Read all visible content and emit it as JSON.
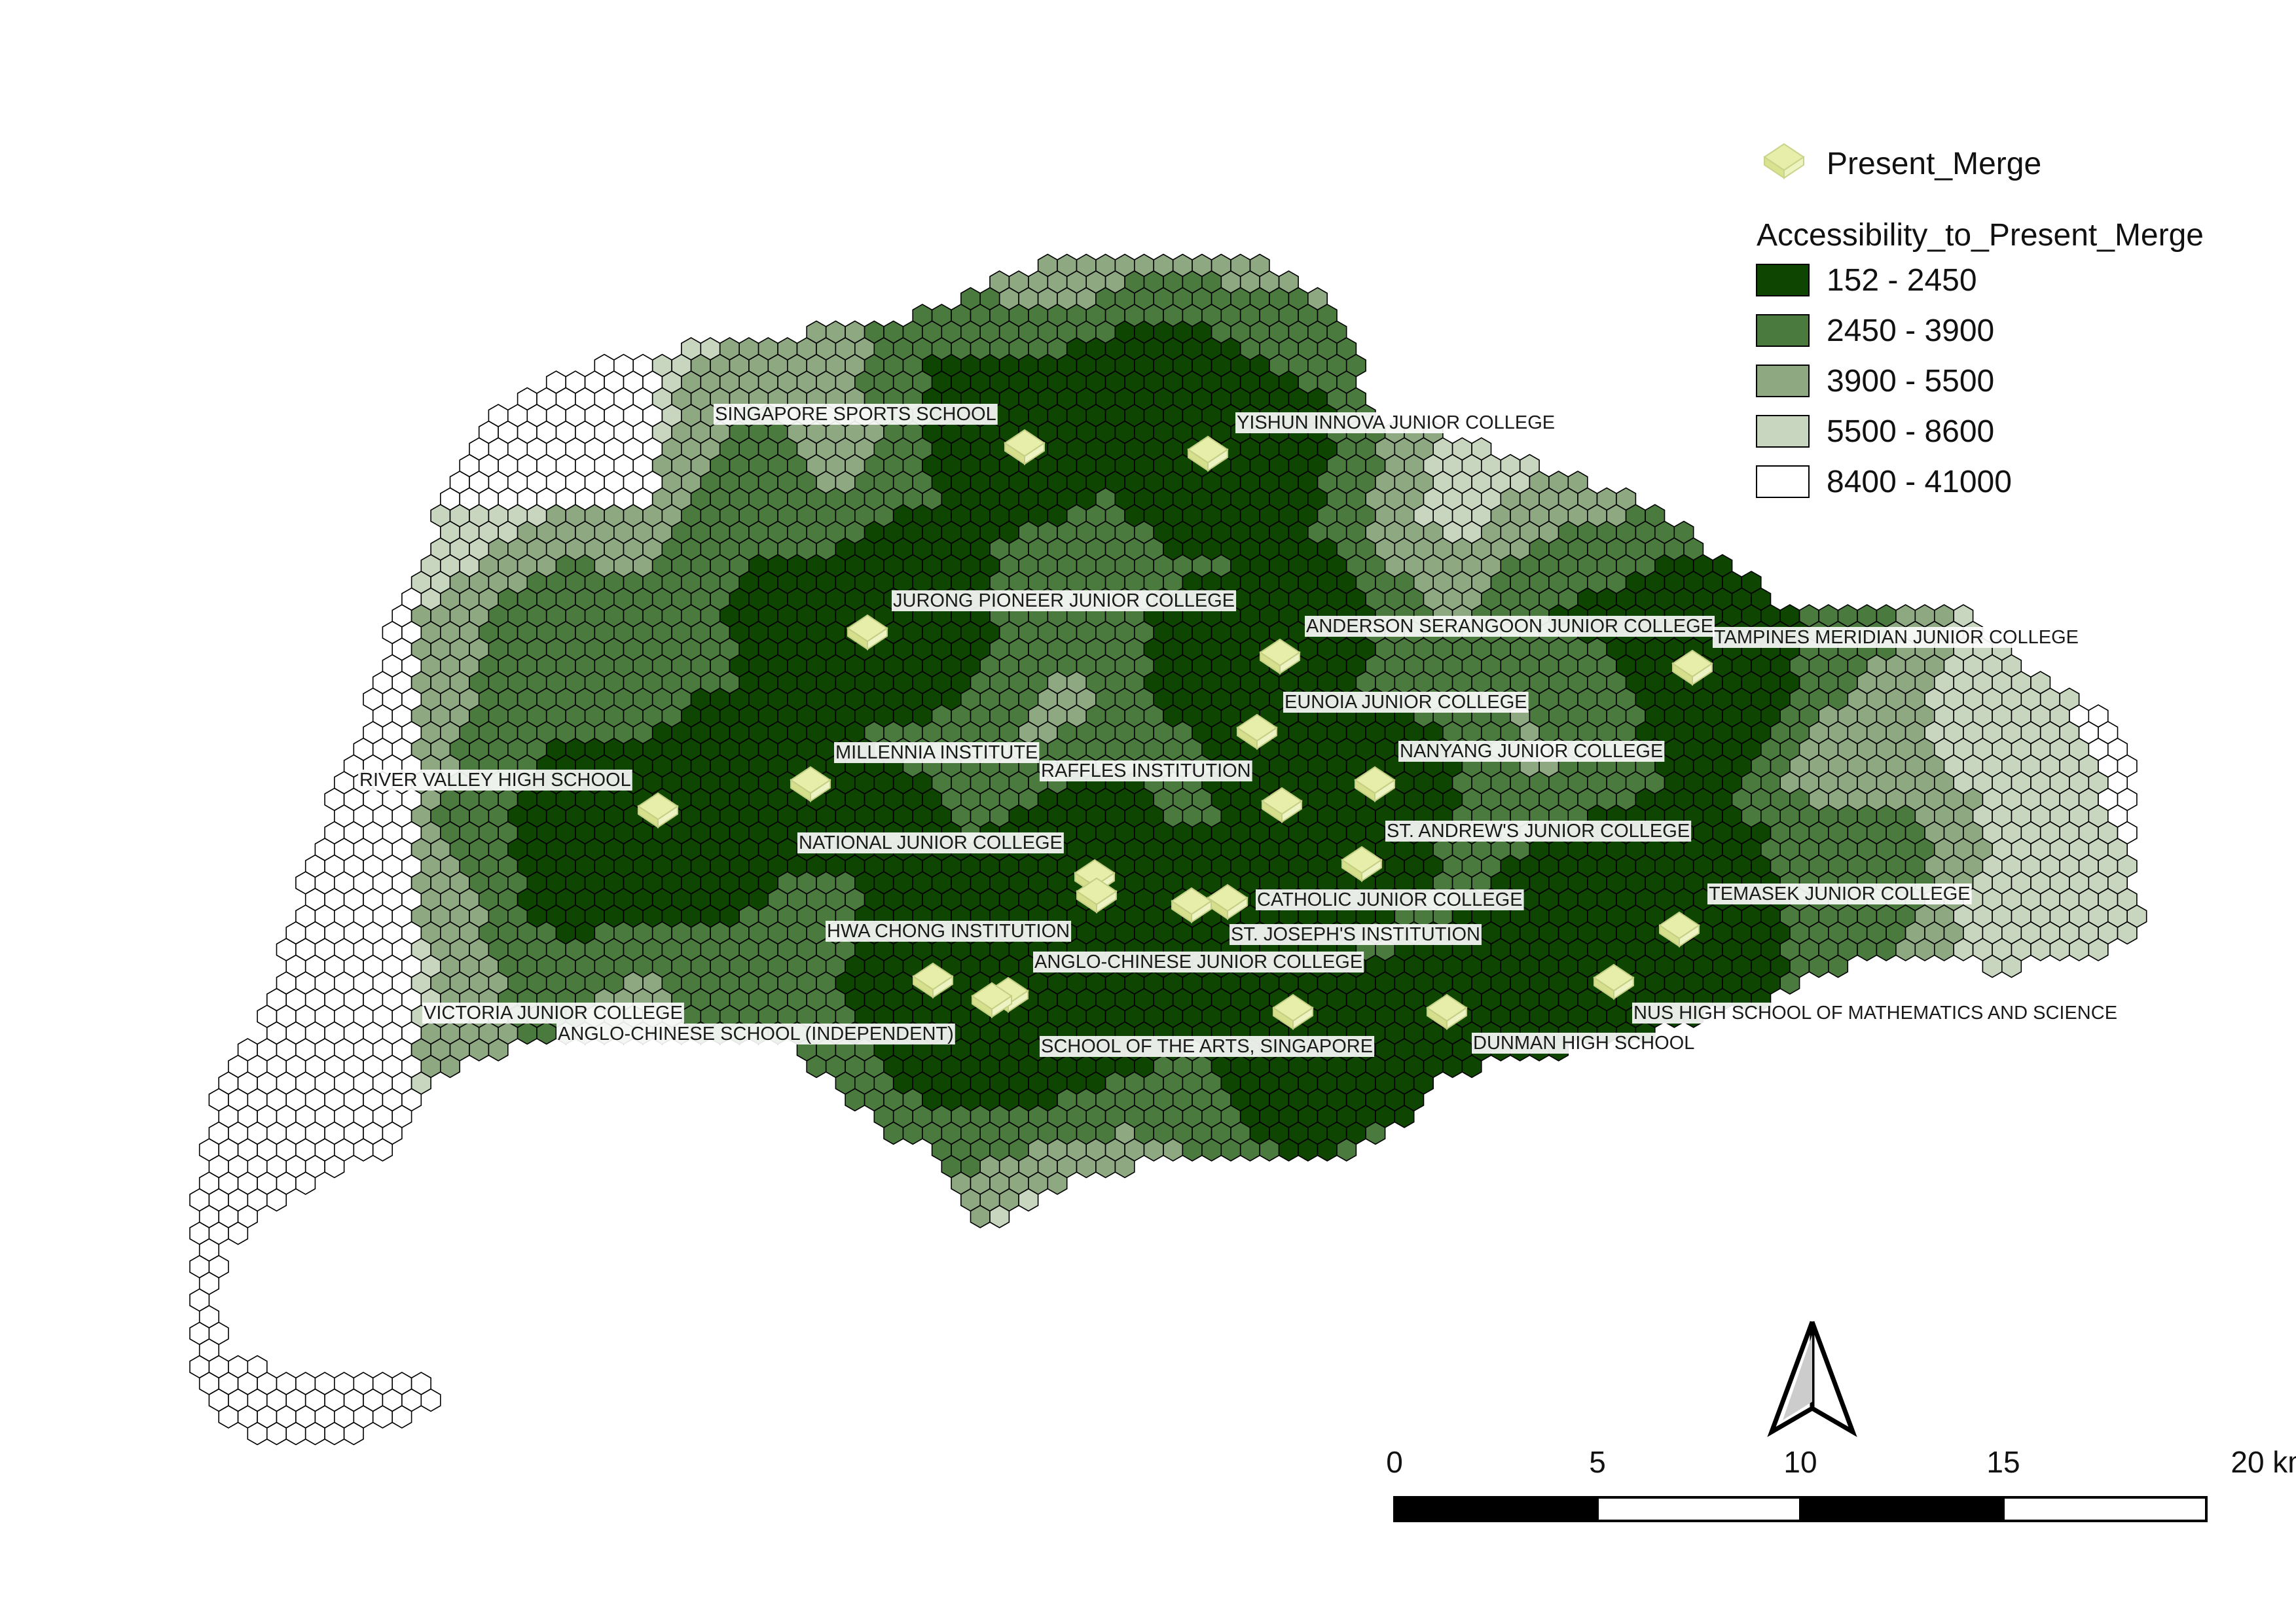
{
  "legend": {
    "point_layer": "Present_Merge",
    "title": "Accessibility_to_Present_Merge",
    "classes": [
      {
        "label": "152 - 2450",
        "color": "#0e4500"
      },
      {
        "label": "2450 - 3900",
        "color": "#4b7a3f"
      },
      {
        "label": "3900 - 5500",
        "color": "#8ea882"
      },
      {
        "label": "5500 - 8600",
        "color": "#c8d6c0"
      },
      {
        "label": "8400 - 41000",
        "color": "#ffffff"
      }
    ],
    "point_color": "#e6eeaa"
  },
  "schools": [
    {
      "name": "SINGAPORE SPORTS SCHOOL"
    },
    {
      "name": "YISHUN INNOVA JUNIOR COLLEGE"
    },
    {
      "name": "JURONG PIONEER JUNIOR COLLEGE"
    },
    {
      "name": "ANDERSON SERANGOON JUNIOR COLLEGE"
    },
    {
      "name": "TAMPINES MERIDIAN JUNIOR COLLEGE"
    },
    {
      "name": "EUNOIA JUNIOR COLLEGE"
    },
    {
      "name": "MILLENNIA INSTITUTE"
    },
    {
      "name": "RAFFLES INSTITUTION"
    },
    {
      "name": "NANYANG JUNIOR COLLEGE"
    },
    {
      "name": "RIVER VALLEY HIGH SCHOOL"
    },
    {
      "name": "ST. ANDREW'S JUNIOR COLLEGE"
    },
    {
      "name": "NATIONAL JUNIOR COLLEGE"
    },
    {
      "name": "CATHOLIC JUNIOR COLLEGE"
    },
    {
      "name": "TEMASEK JUNIOR COLLEGE"
    },
    {
      "name": "HWA CHONG INSTITUTION"
    },
    {
      "name": "ST. JOSEPH'S INSTITUTION"
    },
    {
      "name": "ANGLO-CHINESE JUNIOR COLLEGE"
    },
    {
      "name": "NUS HIGH SCHOOL OF MATHEMATICS AND SCIENCE"
    },
    {
      "name": "VICTORIA JUNIOR COLLEGE"
    },
    {
      "name": "ANGLO-CHINESE SCHOOL (INDEPENDENT)"
    },
    {
      "name": "SCHOOL OF THE ARTS, SINGAPORE"
    },
    {
      "name": "DUNMAN HIGH SCHOOL"
    }
  ],
  "scale_bar": {
    "ticks": [
      "0",
      "5",
      "10",
      "15",
      "20 km"
    ]
  },
  "north_arrow": {
    "icon": "north-arrow-icon"
  }
}
